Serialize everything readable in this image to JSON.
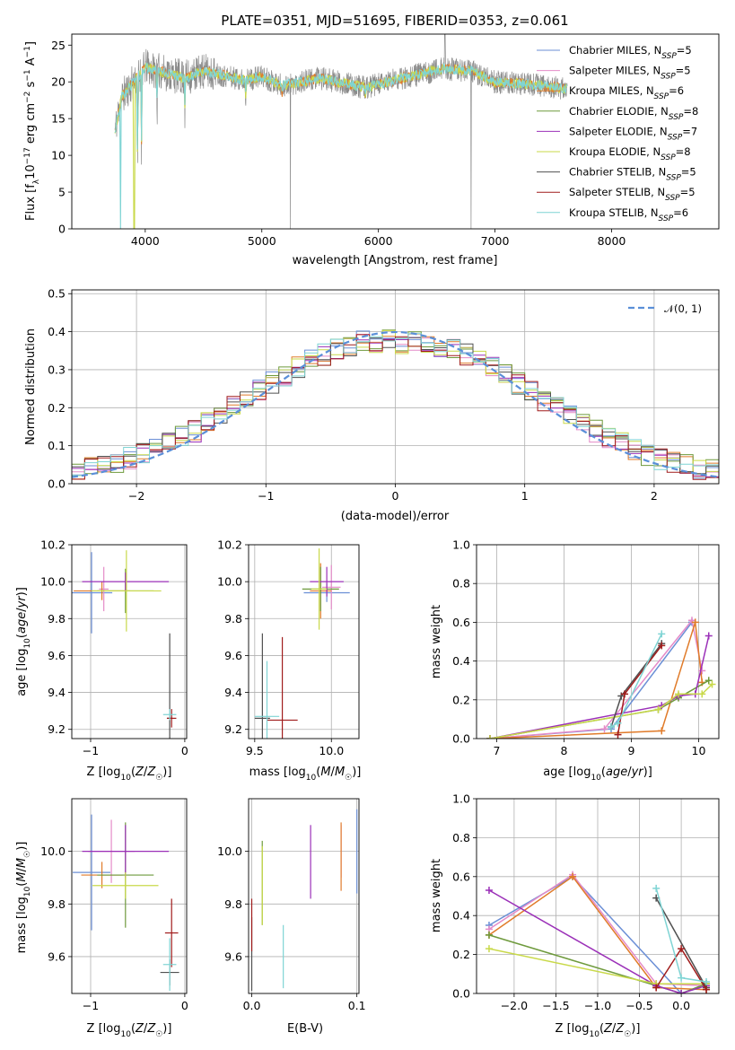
{
  "series_colors": [
    "#6b8fd6",
    "#e48bc8",
    "#e07b2a",
    "#6e9a3c",
    "#9b30b8",
    "#c9d94a",
    "#505050",
    "#a01c1c",
    "#7fd4d4"
  ],
  "chart_data": [
    {
      "id": "spectrum",
      "type": "line",
      "title": "PLATE=0351, MJD=51695, FIBERID=0353, z=0.061",
      "xlabel": "wavelength [Angstrom, rest frame]",
      "ylabel": "Flux [f_λ10⁻¹⁷ erg cm⁻² s⁻¹ A⁻¹]",
      "xlim": [
        3370,
        8920
      ],
      "ylim": [
        0,
        26.5
      ],
      "xticks": [
        4000,
        5000,
        6000,
        7000,
        8000
      ],
      "yticks": [
        0,
        5,
        10,
        15,
        20,
        25
      ],
      "grid": false,
      "legend_position": "top-right",
      "legend": [
        "Chabrier MILES, N_SSP=5",
        "Salpeter MILES, N_SSP=5",
        "Kroupa MILES, N_SSP=6",
        "Chabrier ELODIE, N_SSP=8",
        "Salpeter ELODIE, N_SSP=7",
        "Kroupa ELODIE, N_SSP=8",
        "Chabrier STELIB, N_SSP=5",
        "Salpeter STELIB, N_SSP=5",
        "Kroupa STELIB, N_SSP=6"
      ],
      "data_anchors": {
        "x": [
          3740,
          3800,
          4000,
          4340,
          4500,
          4861,
          5000,
          5175,
          5500,
          5890,
          6200,
          6563,
          6800,
          7000,
          7400,
          7620
        ],
        "y": [
          13.5,
          18,
          22,
          20.5,
          21.5,
          20.2,
          20.8,
          19.5,
          20.5,
          19.2,
          20.5,
          21.8,
          21.5,
          20,
          19.5,
          19
        ]
      }
    },
    {
      "id": "residuals",
      "type": "histogram",
      "xlabel": "(data-model)/error",
      "ylabel": "Normed distribution",
      "xlim": [
        -2.5,
        2.5
      ],
      "ylim": [
        0,
        0.51
      ],
      "xticks": [
        -2,
        -1,
        0,
        1,
        2
      ],
      "yticks": [
        0.0,
        0.1,
        0.2,
        0.3,
        0.4,
        0.5
      ],
      "grid": true,
      "legend_position": "top-right",
      "legend": [
        "𝒩(0, 1)"
      ],
      "bin_width": 0.1
    },
    {
      "id": "age-vs-Z",
      "type": "scatter",
      "xlabel": "Z [log₁₀(Z/Z☉)]",
      "ylabel": "age  [log₁₀(age/yr)]",
      "xlim": [
        -1.2,
        0.02
      ],
      "ylim": [
        9.15,
        10.2
      ],
      "xticks": [
        -1,
        0
      ],
      "yticks": [
        9.2,
        9.4,
        9.6,
        9.8,
        10.0,
        10.2
      ],
      "grid": true,
      "points": [
        {
          "series": 0,
          "x": -0.99,
          "y": 9.94,
          "xerr": 0.22,
          "yerr": 0.22
        },
        {
          "series": 1,
          "x": -0.86,
          "y": 9.96,
          "xerr": 0.05,
          "yerr": 0.12
        },
        {
          "series": 2,
          "x": -0.88,
          "y": 9.95,
          "xerr": 0.3,
          "yerr": 0.05
        },
        {
          "series": 3,
          "x": -0.63,
          "y": 9.95,
          "xerr": 0.3,
          "yerr": 0.12
        },
        {
          "series": 4,
          "x": -0.63,
          "y": 10.0,
          "xerr": 0.46,
          "yerr": 0.05
        },
        {
          "series": 5,
          "x": -0.62,
          "y": 9.95,
          "xerr": 0.37,
          "yerr": 0.22
        },
        {
          "series": 6,
          "x": -0.16,
          "y": 9.26,
          "xerr": 0.03,
          "yerr": 0.46
        },
        {
          "series": 7,
          "x": -0.14,
          "y": 9.26,
          "xerr": 0.05,
          "yerr": 0.05
        },
        {
          "series": 8,
          "x": -0.16,
          "y": 9.28,
          "xerr": 0.07,
          "yerr": 0.03
        }
      ]
    },
    {
      "id": "age-vs-mass",
      "type": "scatter",
      "xlabel": "mass [log₁₀(M/M☉)]",
      "ylabel": "",
      "xlim": [
        9.46,
        10.18
      ],
      "ylim": [
        9.15,
        10.2
      ],
      "xticks": [
        9.5,
        10.0
      ],
      "yticks": [
        9.2,
        9.4,
        9.6,
        9.8,
        10.0,
        10.2
      ],
      "grid": true,
      "points": [
        {
          "series": 0,
          "x": 9.97,
          "y": 9.94,
          "xerr": 0.15,
          "yerr": 0.05
        },
        {
          "series": 1,
          "x": 10.0,
          "y": 9.97,
          "xerr": 0.06,
          "yerr": 0.12
        },
        {
          "series": 2,
          "x": 9.93,
          "y": 9.95,
          "xerr": 0.07,
          "yerr": 0.15
        },
        {
          "series": 3,
          "x": 9.93,
          "y": 9.96,
          "xerr": 0.12,
          "yerr": 0.12
        },
        {
          "series": 4,
          "x": 9.97,
          "y": 10.0,
          "xerr": 0.11,
          "yerr": 0.08
        },
        {
          "series": 5,
          "x": 9.92,
          "y": 9.96,
          "xerr": 0.05,
          "yerr": 0.22
        },
        {
          "series": 6,
          "x": 9.55,
          "y": 9.26,
          "xerr": 0.05,
          "yerr": 0.46
        },
        {
          "series": 7,
          "x": 9.68,
          "y": 9.25,
          "xerr": 0.1,
          "yerr": 0.45
        },
        {
          "series": 8,
          "x": 9.58,
          "y": 9.27,
          "xerr": 0.08,
          "yerr": 0.3
        }
      ]
    },
    {
      "id": "massweight-vs-age",
      "type": "line",
      "xlabel": "age  [log₁₀(age/yr)]",
      "ylabel": "mass weight",
      "xlim": [
        6.7,
        10.3
      ],
      "ylim": [
        0,
        1.0
      ],
      "xticks": [
        7,
        8,
        9,
        10
      ],
      "yticks": [
        0.0,
        0.2,
        0.4,
        0.6,
        0.8,
        1.0
      ],
      "grid": true,
      "series": [
        {
          "x": [
            6.9,
            8.7,
            9.9
          ],
          "y": [
            0.0,
            0.05,
            0.6
          ]
        },
        {
          "x": [
            6.9,
            8.6,
            9.9,
            10.05
          ],
          "y": [
            0.0,
            0.05,
            0.61,
            0.35
          ]
        },
        {
          "x": [
            6.9,
            9.45,
            9.95,
            10.05
          ],
          "y": [
            0.0,
            0.04,
            0.6,
            0.29
          ]
        },
        {
          "x": [
            6.9,
            9.4,
            9.7,
            10.15
          ],
          "y": [
            0.0,
            0.15,
            0.21,
            0.3
          ]
        },
        {
          "x": [
            6.9,
            9.45,
            9.7,
            9.95,
            10.15
          ],
          "y": [
            0.0,
            0.17,
            0.22,
            0.23,
            0.53
          ]
        },
        {
          "x": [
            6.9,
            9.4,
            9.7,
            10.05,
            10.2
          ],
          "y": [
            0.0,
            0.15,
            0.23,
            0.23,
            0.28
          ]
        },
        {
          "x": [
            8.7,
            8.85,
            9.45
          ],
          "y": [
            0.06,
            0.22,
            0.49
          ]
        },
        {
          "x": [
            8.8,
            8.9,
            9.45
          ],
          "y": [
            0.02,
            0.23,
            0.48
          ]
        },
        {
          "x": [
            8.7,
            8.8,
            9.45
          ],
          "y": [
            0.06,
            0.08,
            0.54
          ]
        }
      ]
    },
    {
      "id": "mass-vs-Z",
      "type": "scatter",
      "xlabel": "Z [log₁₀(Z/Z☉)]",
      "ylabel": "mass [log₁₀(M/M☉)]",
      "xlim": [
        -1.2,
        0.02
      ],
      "ylim": [
        9.46,
        10.2
      ],
      "xticks": [
        -1,
        0
      ],
      "yticks": [
        9.6,
        9.8,
        10.0
      ],
      "grid": true,
      "points": [
        {
          "series": 0,
          "x": -0.99,
          "y": 9.92,
          "xerr": 0.2,
          "yerr": 0.22
        },
        {
          "series": 1,
          "x": -0.78,
          "y": 10.0,
          "xerr": 0.25,
          "yerr": 0.12
        },
        {
          "series": 2,
          "x": -0.88,
          "y": 9.91,
          "xerr": 0.22,
          "yerr": 0.05
        },
        {
          "series": 3,
          "x": -0.63,
          "y": 9.91,
          "xerr": 0.3,
          "yerr": 0.2
        },
        {
          "series": 4,
          "x": -0.63,
          "y": 10.0,
          "xerr": 0.46,
          "yerr": 0.1
        },
        {
          "series": 5,
          "x": -0.63,
          "y": 9.87,
          "xerr": 0.35,
          "yerr": 0.05
        },
        {
          "series": 6,
          "x": -0.16,
          "y": 9.54,
          "xerr": 0.1,
          "yerr": 0.05
        },
        {
          "series": 7,
          "x": -0.14,
          "y": 9.69,
          "xerr": 0.07,
          "yerr": 0.13
        },
        {
          "series": 8,
          "x": -0.16,
          "y": 9.57,
          "xerr": 0.07,
          "yerr": 0.1
        }
      ]
    },
    {
      "id": "mass-vs-EBV",
      "type": "scatter",
      "xlabel": "E(B-V)",
      "ylabel": "",
      "xlim": [
        -0.003,
        0.102
      ],
      "ylim": [
        9.46,
        10.2
      ],
      "xticks": [
        0.0,
        0.1
      ],
      "yticks": [
        9.6,
        9.8,
        10.0
      ],
      "grid": true,
      "points": [
        {
          "series": 0,
          "x": 0.1,
          "y": 10.0,
          "xerr": 0,
          "yerr": 0.16
        },
        {
          "series": 1,
          "x": 0.085,
          "y": 10.0,
          "xerr": 0,
          "yerr": 0.1
        },
        {
          "series": 2,
          "x": 0.085,
          "y": 9.98,
          "xerr": 0,
          "yerr": 0.13
        },
        {
          "series": 3,
          "x": 0.01,
          "y": 9.88,
          "xerr": 0,
          "yerr": 0.16
        },
        {
          "series": 4,
          "x": 0.056,
          "y": 9.96,
          "xerr": 0,
          "yerr": 0.14
        },
        {
          "series": 5,
          "x": 0.01,
          "y": 9.87,
          "xerr": 0,
          "yerr": 0.15
        },
        {
          "series": 6,
          "x": 0.0,
          "y": 9.61,
          "xerr": 0,
          "yerr": 0.14
        },
        {
          "series": 7,
          "x": 0.0,
          "y": 9.72,
          "xerr": 0,
          "yerr": 0.1
        },
        {
          "series": 8,
          "x": 0.03,
          "y": 9.6,
          "xerr": 0,
          "yerr": 0.12
        }
      ]
    },
    {
      "id": "massweight-vs-Z",
      "type": "line",
      "xlabel": "Z [log₁₀(Z/Z☉)]",
      "ylabel": "mass weight",
      "xlim": [
        -2.45,
        0.45
      ],
      "ylim": [
        0,
        1.0
      ],
      "xticks": [
        -2.0,
        -1.5,
        -1.0,
        -0.5,
        0.0
      ],
      "yticks": [
        0.0,
        0.2,
        0.4,
        0.6,
        0.8,
        1.0
      ],
      "grid": true,
      "series": [
        {
          "x": [
            -2.3,
            -1.3,
            0.0,
            0.3
          ],
          "y": [
            0.35,
            0.6,
            0.0,
            0.05
          ]
        },
        {
          "x": [
            -2.3,
            -1.3,
            -0.3,
            0.3
          ],
          "y": [
            0.33,
            0.61,
            0.05,
            0.04
          ]
        },
        {
          "x": [
            -2.3,
            -1.3,
            -0.3,
            0.3
          ],
          "y": [
            0.3,
            0.6,
            0.03,
            0.02
          ]
        },
        {
          "x": [
            -2.3,
            -0.3,
            0.0,
            0.3
          ],
          "y": [
            0.3,
            0.04,
            0.0,
            0.05
          ]
        },
        {
          "x": [
            -2.3,
            -0.3,
            0.0,
            0.3
          ],
          "y": [
            0.53,
            0.04,
            0.0,
            0.04
          ]
        },
        {
          "x": [
            -2.3,
            -0.3,
            0.3
          ],
          "y": [
            0.23,
            0.05,
            0.05
          ]
        },
        {
          "x": [
            -0.3,
            0.3
          ],
          "y": [
            0.49,
            0.03
          ]
        },
        {
          "x": [
            -0.3,
            0.0,
            0.3
          ],
          "y": [
            0.03,
            0.23,
            0.02
          ]
        },
        {
          "x": [
            -0.3,
            0.0,
            0.3
          ],
          "y": [
            0.54,
            0.08,
            0.06
          ]
        }
      ]
    }
  ]
}
